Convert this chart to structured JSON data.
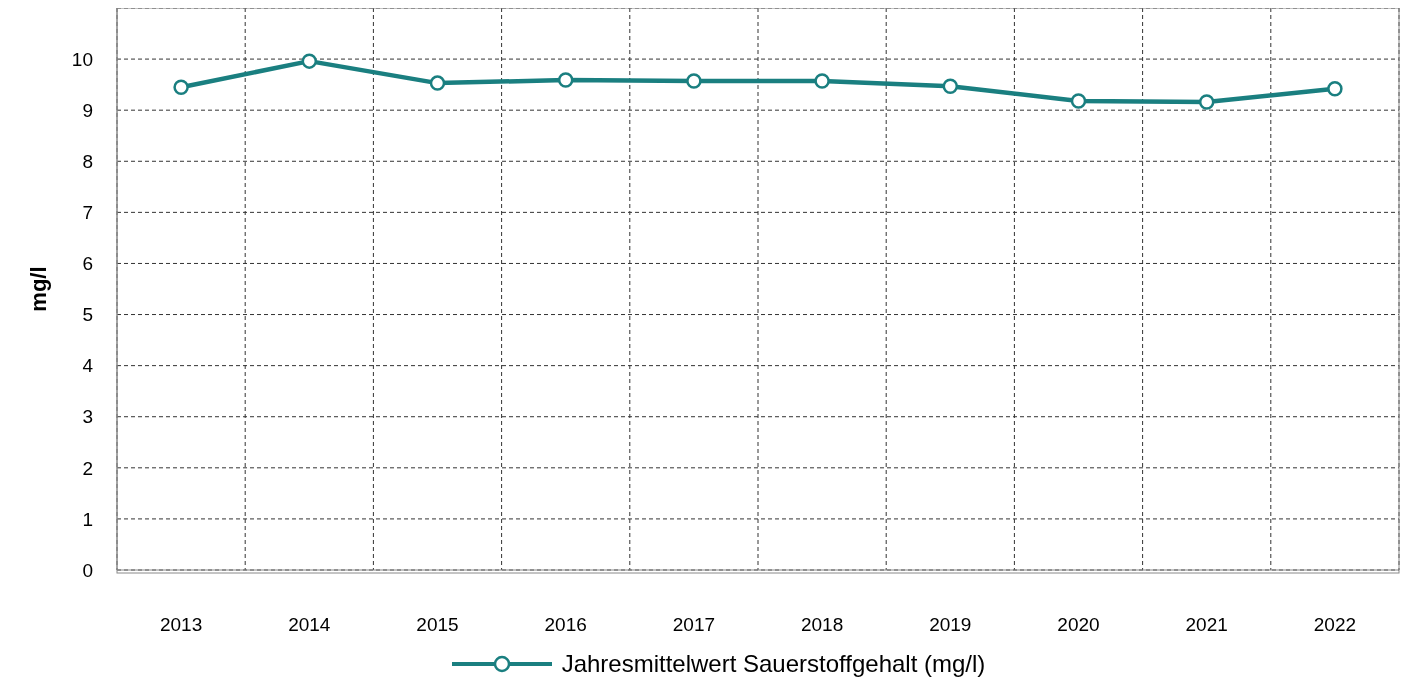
{
  "chart_data": {
    "type": "line",
    "ylabel": "mg/l",
    "categories": [
      "2013",
      "2014",
      "2015",
      "2016",
      "2017",
      "2018",
      "2019",
      "2020",
      "2021",
      "2022"
    ],
    "series": [
      {
        "name": "Jahresmittelwert Sauerstoffgehalt (mg/l)",
        "color": "#1a7f80",
        "values": [
          9.45,
          9.96,
          9.53,
          9.59,
          9.57,
          9.57,
          9.47,
          9.18,
          9.16,
          9.42
        ]
      }
    ],
    "ylim": [
      0,
      11
    ],
    "yticks": [
      0,
      1,
      2,
      3,
      4,
      5,
      6,
      7,
      8,
      9,
      10
    ],
    "grid": true,
    "legend": "bottom",
    "marker": "circle",
    "line_style": "solid"
  }
}
